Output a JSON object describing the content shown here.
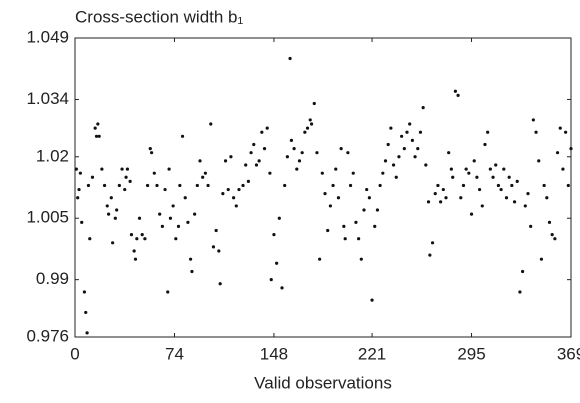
{
  "chart_data": {
    "type": "scatter",
    "title": "Cross-section width b₁",
    "xlabel": "Valid observations",
    "color": "#111111",
    "xlim": [
      0,
      369
    ],
    "xticks": [
      0,
      74,
      148,
      221,
      295,
      369
    ],
    "ylim": [
      0.976,
      1.049
    ],
    "yticks": [
      0.976,
      0.99,
      1.005,
      1.02,
      1.034,
      1.049
    ],
    "x": [
      1,
      2,
      3,
      4,
      5,
      7,
      8,
      9,
      10,
      11,
      13,
      15,
      16,
      17,
      18,
      20,
      22,
      24,
      25,
      27,
      28,
      30,
      31,
      33,
      35,
      37,
      38,
      39,
      41,
      42,
      44,
      45,
      46,
      48,
      50,
      52,
      54,
      56,
      57,
      59,
      61,
      63,
      65,
      67,
      69,
      70,
      71,
      73,
      75,
      77,
      78,
      80,
      82,
      84,
      86,
      87,
      89,
      91,
      93,
      95,
      97,
      99,
      101,
      103,
      105,
      107,
      108,
      110,
      112,
      114,
      116,
      118,
      120,
      122,
      125,
      127,
      129,
      131,
      133,
      135,
      137,
      139,
      141,
      143,
      145,
      146,
      148,
      150,
      152,
      154,
      156,
      158,
      160,
      161,
      163,
      165,
      167,
      169,
      171,
      173,
      175,
      176,
      178,
      180,
      182,
      184,
      186,
      188,
      190,
      192,
      194,
      196,
      198,
      200,
      201,
      203,
      205,
      207,
      209,
      211,
      213,
      215,
      217,
      219,
      221,
      223,
      225,
      227,
      229,
      231,
      233,
      235,
      237,
      239,
      241,
      243,
      245,
      247,
      249,
      251,
      253,
      255,
      257,
      259,
      261,
      263,
      264,
      266,
      268,
      270,
      272,
      274,
      276,
      278,
      280,
      281,
      283,
      285,
      287,
      289,
      291,
      293,
      295,
      297,
      299,
      301,
      303,
      305,
      307,
      309,
      311,
      313,
      315,
      317,
      319,
      321,
      323,
      325,
      327,
      329,
      331,
      333,
      335,
      337,
      339,
      341,
      343,
      345,
      347,
      349,
      351,
      353,
      355,
      357,
      359,
      361,
      363,
      365,
      367,
      369
    ],
    "values": [
      1.017,
      1.01,
      1.012,
      1.016,
      1.004,
      0.987,
      0.982,
      0.977,
      1.013,
      1.0,
      1.015,
      1.027,
      1.025,
      1.028,
      1.025,
      1.017,
      1.013,
      1.008,
      1.006,
      1.01,
      0.999,
      1.005,
      1.007,
      1.013,
      1.017,
      1.012,
      1.015,
      1.017,
      1.014,
      1.001,
      0.997,
      0.995,
      1.0,
      1.005,
      1.001,
      1.0,
      1.013,
      1.022,
      1.021,
      1.016,
      1.013,
      1.006,
      1.003,
      1.012,
      0.987,
      1.017,
      1.005,
      1.008,
      1.0,
      1.003,
      1.013,
      1.025,
      1.01,
      1.004,
      0.995,
      0.992,
      1.006,
      1.013,
      1.019,
      1.015,
      1.016,
      1.013,
      1.028,
      0.998,
      1.002,
      0.997,
      0.989,
      1.011,
      1.019,
      1.012,
      1.02,
      1.01,
      1.008,
      1.012,
      1.013,
      1.018,
      1.014,
      1.021,
      1.023,
      1.018,
      1.019,
      1.026,
      1.022,
      1.027,
      1.016,
      0.99,
      1.001,
      0.994,
      1.005,
      0.988,
      1.013,
      1.02,
      1.044,
      1.024,
      1.022,
      1.017,
      1.019,
      1.021,
      1.026,
      1.027,
      1.029,
      1.028,
      1.033,
      1.021,
      0.995,
      1.016,
      1.011,
      1.002,
      1.008,
      1.013,
      1.017,
      1.01,
      1.022,
      1.003,
      1.0,
      1.021,
      1.013,
      1.016,
      1.004,
      1.0,
      0.995,
      1.007,
      1.012,
      1.01,
      0.985,
      1.003,
      1.007,
      1.013,
      1.016,
      1.019,
      1.023,
      1.027,
      1.018,
      1.015,
      1.02,
      1.025,
      1.022,
      1.026,
      1.028,
      1.024,
      1.02,
      1.022,
      1.026,
      1.032,
      1.018,
      1.009,
      0.996,
      0.999,
      1.011,
      1.013,
      1.009,
      1.012,
      1.01,
      1.021,
      1.017,
      1.015,
      1.036,
      1.035,
      1.01,
      1.013,
      1.017,
      1.016,
      1.006,
      1.019,
      1.015,
      1.012,
      1.008,
      1.023,
      1.026,
      1.017,
      1.015,
      1.018,
      1.013,
      1.012,
      1.017,
      1.01,
      1.015,
      1.013,
      1.009,
      1.014,
      0.987,
      0.992,
      1.008,
      1.011,
      1.003,
      1.029,
      1.026,
      1.019,
      0.995,
      1.013,
      1.01,
      1.004,
      1.001,
      1.0,
      1.021,
      1.027,
      1.017,
      1.026,
      1.013,
      1.022
    ]
  }
}
